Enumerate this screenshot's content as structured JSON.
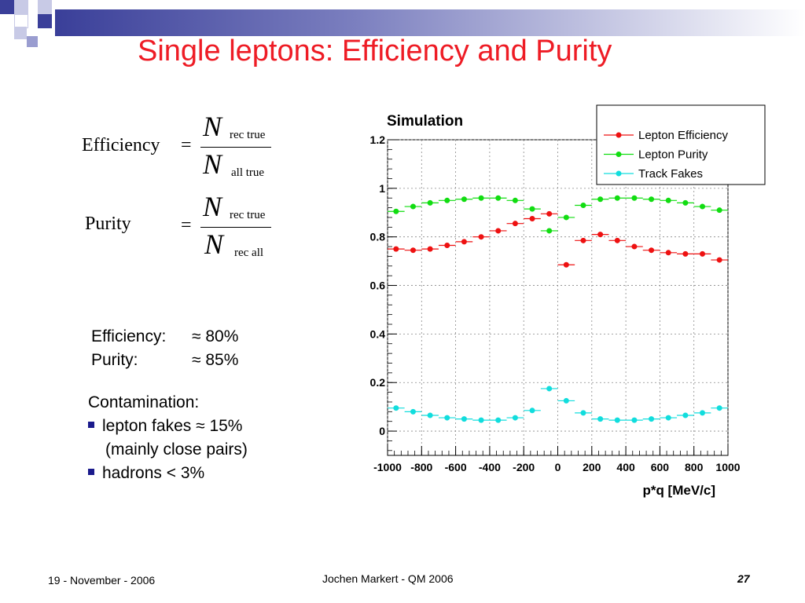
{
  "slide": {
    "title": "Single leptons: Efficiency and Purity",
    "formulas": {
      "efficiency_label": "Efficiency",
      "purity_label": "Purity",
      "equals": "=",
      "N": "N",
      "sub_rec_true": "rec true",
      "sub_all_true": "all true",
      "sub_rec_all": "rec all"
    },
    "stats": {
      "efficiency_label": "Efficiency:",
      "efficiency_value": "≈ 80%",
      "purity_label": "Purity:",
      "purity_value": "≈ 85%"
    },
    "contamination": {
      "heading": "Contamination:",
      "item1": "lepton fakes  ≈ 15%",
      "item1_sub": "(mainly close pairs)",
      "item2": "hadrons  < 3%"
    },
    "footer": {
      "date": "19 - November - 2006",
      "author": "Jochen Markert - QM 2006",
      "page": "27"
    },
    "colors": {
      "title": "#ee1c25",
      "header_bar": "#3a3f99",
      "bullet": "#1a1a8c"
    }
  },
  "chart_data": {
    "type": "scatter",
    "title": "Simulation",
    "xlabel": "p*q [MeV/c]",
    "ylabel": "",
    "xlim": [
      -1000,
      1000
    ],
    "ylim": [
      -0.1,
      1.2
    ],
    "x_ticks": [
      -1000,
      -800,
      -600,
      -400,
      -200,
      0,
      200,
      400,
      600,
      800,
      1000
    ],
    "x_tick_labels": [
      "-1000",
      "-800",
      "-600",
      "-400",
      "-200",
      "0",
      "200",
      "400",
      "600",
      "800",
      "1000"
    ],
    "y_ticks": [
      0,
      0.2,
      0.4,
      0.6,
      0.8,
      1,
      1.2
    ],
    "y_tick_labels": [
      "0",
      "0.2",
      "0.4",
      "0.6",
      "0.8",
      "1",
      "1.2"
    ],
    "grid": true,
    "legend_position": "top-right",
    "x": [
      -950,
      -850,
      -750,
      -650,
      -550,
      -450,
      -350,
      -250,
      -150,
      -50,
      50,
      150,
      250,
      350,
      450,
      550,
      650,
      750,
      850,
      950
    ],
    "series": [
      {
        "name": "Lepton Efficiency",
        "color": "#ee1111",
        "values": [
          0.75,
          0.745,
          0.75,
          0.765,
          0.78,
          0.8,
          0.825,
          0.855,
          0.875,
          0.895,
          0.685,
          0.785,
          0.81,
          0.785,
          0.76,
          0.745,
          0.735,
          0.73,
          0.73,
          0.705
        ]
      },
      {
        "name": "Lepton Purity",
        "color": "#11dd11",
        "values": [
          0.905,
          0.925,
          0.94,
          0.95,
          0.955,
          0.96,
          0.96,
          0.95,
          0.915,
          0.825,
          0.88,
          0.93,
          0.955,
          0.96,
          0.96,
          0.955,
          0.95,
          0.94,
          0.925,
          0.91
        ]
      },
      {
        "name": "Track Fakes",
        "color": "#11dddd",
        "values": [
          0.095,
          0.08,
          0.065,
          0.055,
          0.05,
          0.045,
          0.045,
          0.055,
          0.085,
          0.175,
          0.125,
          0.075,
          0.05,
          0.045,
          0.045,
          0.05,
          0.055,
          0.065,
          0.075,
          0.095
        ]
      }
    ]
  }
}
